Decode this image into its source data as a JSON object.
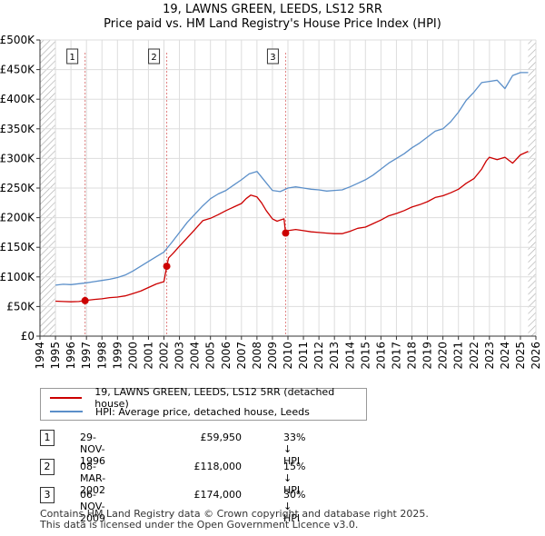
{
  "title_line1": "19, LAWNS GREEN, LEEDS, LS12 5RR",
  "title_line2": "Price paid vs. HM Land Registry's House Price Index (HPI)",
  "colors": {
    "property": "#cc0000",
    "hpi": "#5b8fc9",
    "shade": "#dde7f5",
    "hatch": "#aaaaaa",
    "grid": "#dddddd",
    "marker_line": "#e08080"
  },
  "chart_data": {
    "type": "line",
    "title": "19, LAWNS GREEN, LEEDS, LS12 5RR - Price paid vs. HM Land Registry's House Price Index (HPI)",
    "xlabel": "",
    "ylabel": "",
    "xlim": [
      1994,
      2026
    ],
    "ylim": [
      0,
      500000
    ],
    "yticks": [
      {
        "value": 0,
        "label": "£0"
      },
      {
        "value": 50000,
        "label": "£50K"
      },
      {
        "value": 100000,
        "label": "£100K"
      },
      {
        "value": 150000,
        "label": "£150K"
      },
      {
        "value": 200000,
        "label": "£200K"
      },
      {
        "value": 250000,
        "label": "£250K"
      },
      {
        "value": 300000,
        "label": "£300K"
      },
      {
        "value": 350000,
        "label": "£350K"
      },
      {
        "value": 400000,
        "label": "£400K"
      },
      {
        "value": 450000,
        "label": "£450K"
      },
      {
        "value": 500000,
        "label": "£500K"
      }
    ],
    "xticks": [
      "1994",
      "1995",
      "1996",
      "1997",
      "1998",
      "1999",
      "2000",
      "2001",
      "2002",
      "2003",
      "2004",
      "2005",
      "2006",
      "2007",
      "2008",
      "2009",
      "2010",
      "2011",
      "2012",
      "2013",
      "2014",
      "2015",
      "2016",
      "2017",
      "2018",
      "2019",
      "2020",
      "2021",
      "2022",
      "2023",
      "2024",
      "2025",
      "2026"
    ],
    "data_start": 1995.0,
    "data_end": 2025.5,
    "grid": true,
    "legend_position": "bottom",
    "series": [
      {
        "name": "19, LAWNS GREEN, LEEDS, LS12 5RR (detached house)",
        "color": "#cc0000",
        "x": [
          1995.0,
          1995.5,
          1996.0,
          1996.5,
          1996.91,
          1997.0,
          1997.5,
          1998.0,
          1998.5,
          1999.0,
          1999.5,
          2000.0,
          2000.5,
          2001.0,
          2001.5,
          2002.0,
          2002.18,
          2002.3,
          2002.6,
          2003.0,
          2003.5,
          2004.0,
          2004.5,
          2005.0,
          2005.5,
          2006.0,
          2006.5,
          2007.0,
          2007.3,
          2007.6,
          2008.0,
          2008.3,
          2008.6,
          2009.0,
          2009.3,
          2009.5,
          2009.75,
          2009.85,
          2010.0,
          2010.5,
          2011.0,
          2011.5,
          2012.0,
          2012.5,
          2013.0,
          2013.5,
          2014.0,
          2014.5,
          2015.0,
          2015.5,
          2016.0,
          2016.5,
          2017.0,
          2017.5,
          2018.0,
          2018.5,
          2019.0,
          2019.5,
          2020.0,
          2020.5,
          2021.0,
          2021.5,
          2022.0,
          2022.5,
          2022.8,
          2023.0,
          2023.5,
          2024.0,
          2024.5,
          2025.0,
          2025.5
        ],
        "values": [
          59000,
          58500,
          58000,
          58500,
          59950,
          60500,
          62000,
          63000,
          65000,
          66000,
          68000,
          72000,
          76000,
          82000,
          88000,
          92000,
          118000,
          132000,
          140000,
          152000,
          166000,
          180000,
          195000,
          199000,
          205000,
          212000,
          218000,
          224000,
          232000,
          238000,
          235000,
          225000,
          212000,
          198000,
          194000,
          196000,
          198000,
          174000,
          178000,
          180000,
          178000,
          176000,
          175000,
          174000,
          173000,
          173000,
          177000,
          182000,
          184000,
          190000,
          196000,
          203000,
          207000,
          212000,
          218000,
          222000,
          227000,
          234000,
          237000,
          242000,
          248000,
          258000,
          266000,
          282000,
          296000,
          302000,
          298000,
          302000,
          292000,
          306000,
          312000
        ]
      },
      {
        "name": "HPI: Average price, detached house, Leeds",
        "color": "#5b8fc9",
        "x": [
          1995.0,
          1995.5,
          1996.0,
          1996.5,
          1997.0,
          1997.5,
          1998.0,
          1998.5,
          1999.0,
          1999.5,
          2000.0,
          2000.5,
          2001.0,
          2001.5,
          2002.0,
          2002.5,
          2003.0,
          2003.5,
          2004.0,
          2004.5,
          2005.0,
          2005.5,
          2006.0,
          2006.5,
          2007.0,
          2007.5,
          2008.0,
          2008.5,
          2009.0,
          2009.5,
          2010.0,
          2010.5,
          2011.0,
          2011.5,
          2012.0,
          2012.5,
          2013.0,
          2013.5,
          2014.0,
          2014.5,
          2015.0,
          2015.5,
          2016.0,
          2016.5,
          2017.0,
          2017.5,
          2018.0,
          2018.5,
          2019.0,
          2019.5,
          2020.0,
          2020.5,
          2021.0,
          2021.5,
          2022.0,
          2022.5,
          2023.0,
          2023.5,
          2024.0,
          2024.5,
          2025.0,
          2025.5
        ],
        "values": [
          86000,
          87500,
          87000,
          88500,
          90000,
          92000,
          94000,
          96000,
          99000,
          103000,
          110000,
          118000,
          126000,
          134000,
          142000,
          158000,
          175000,
          192000,
          206000,
          220000,
          232000,
          240000,
          246000,
          255000,
          264000,
          274000,
          278000,
          262000,
          246000,
          244000,
          250000,
          252000,
          250000,
          248000,
          247000,
          245000,
          246000,
          247000,
          252000,
          258000,
          264000,
          272000,
          282000,
          292000,
          300000,
          308000,
          318000,
          326000,
          336000,
          346000,
          350000,
          362000,
          378000,
          398000,
          412000,
          428000,
          430000,
          432000,
          418000,
          440000,
          445000,
          445000
        ]
      }
    ],
    "transactions": [
      {
        "id": "1",
        "x": 1996.91,
        "value": 59950
      },
      {
        "id": "2",
        "x": 2002.18,
        "value": 118000
      },
      {
        "id": "3",
        "x": 2009.85,
        "value": 174000
      }
    ]
  },
  "legend": [
    {
      "label": "19, LAWNS GREEN, LEEDS, LS12 5RR (detached house)",
      "color": "#cc0000"
    },
    {
      "label": "HPI: Average price, detached house, Leeds",
      "color": "#5b8fc9"
    }
  ],
  "transactions_table": [
    {
      "id": "1",
      "date": "29-NOV-1996",
      "price": "£59,950",
      "hpi": "33% ↓ HPI"
    },
    {
      "id": "2",
      "date": "08-MAR-2002",
      "price": "£118,000",
      "hpi": "15% ↓ HPI"
    },
    {
      "id": "3",
      "date": "06-NOV-2009",
      "price": "£174,000",
      "hpi": "30% ↓ HPI"
    }
  ],
  "footer_line1": "Contains HM Land Registry data © Crown copyright and database right 2025.",
  "footer_line2": "This data is licensed under the Open Government Licence v3.0."
}
